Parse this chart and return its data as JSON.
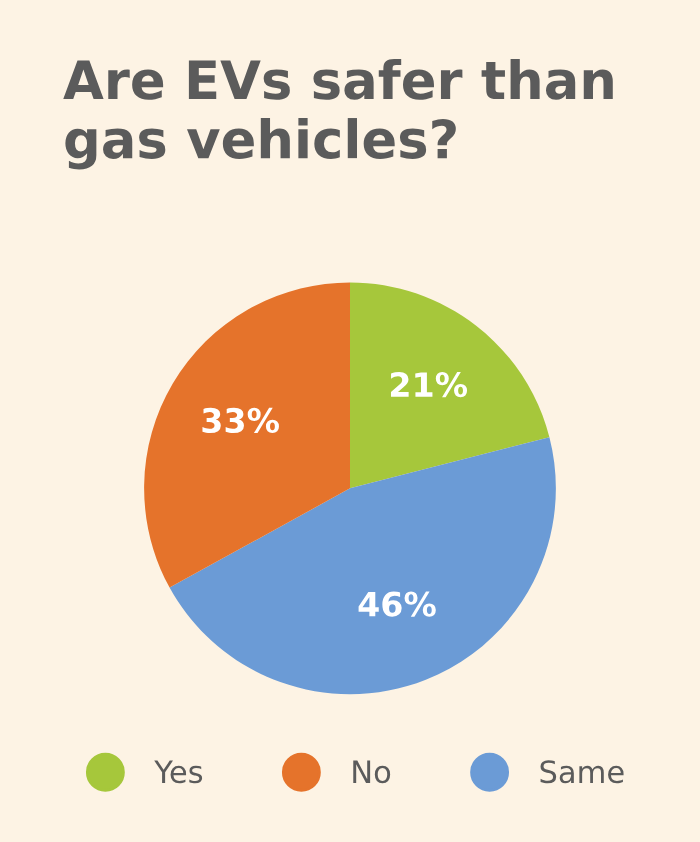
{
  "chart_data": {
    "type": "pie",
    "title": "Are EVs safer than gas vehicles?",
    "categories": [
      "Yes",
      "Same",
      "No"
    ],
    "values": [
      21,
      46,
      33
    ],
    "value_labels": [
      "21%",
      "46%",
      "33%"
    ],
    "colors": [
      "#a6c73b",
      "#6b9bd6",
      "#e5732b"
    ],
    "legend": "bottom"
  }
}
